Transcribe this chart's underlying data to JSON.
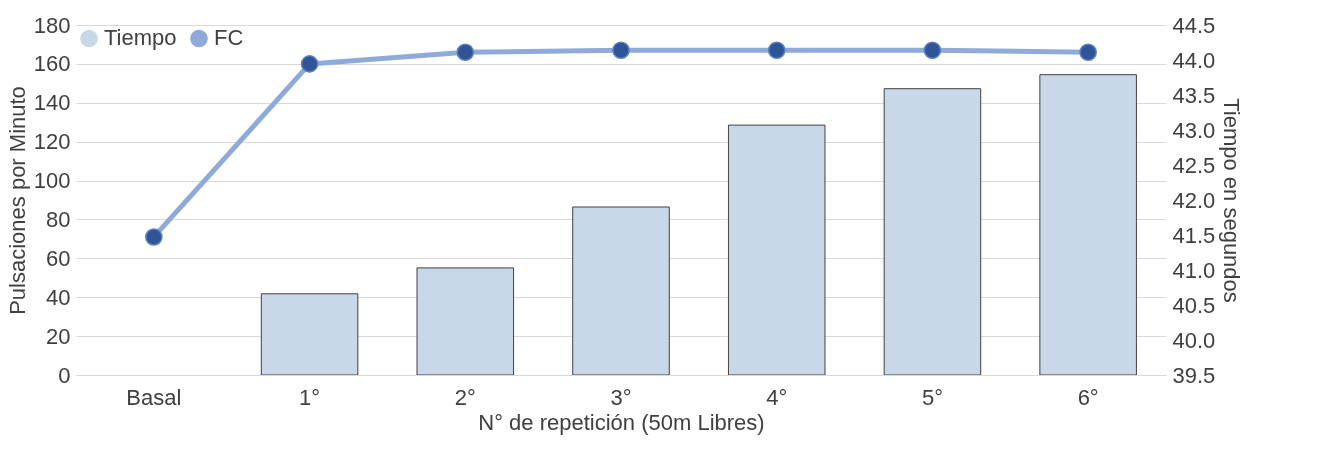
{
  "chart_data": {
    "type": "bar",
    "xlabel": "N° de repetición (50m Libres)",
    "ylabel": "Pulsaciones por Minuto",
    "y2label": "Tiempo en segundos",
    "categories": [
      "Basal",
      "1°",
      "2°",
      "3°",
      "4°",
      "5°",
      "6°"
    ],
    "series": [
      {
        "name": "Tiempo",
        "axis": "y2",
        "color": "#c9d8e8",
        "values": [
          null,
          40.66,
          41.03,
          41.9,
          43.07,
          43.59,
          43.79
        ]
      },
      {
        "name": "FC",
        "type": "line",
        "color": "#8eaadb",
        "values": [
          71,
          160,
          166,
          167,
          167,
          167,
          166
        ]
      }
    ],
    "ylim": [
      0,
      180
    ],
    "yticks": [
      0,
      20,
      40,
      60,
      80,
      100,
      120,
      140,
      160,
      180
    ],
    "y2lim": [
      39.5,
      44.5
    ],
    "y2ticks": [
      39.5,
      {
        "value": 40,
        "label": "40.0"
      },
      40.5,
      {
        "value": 41,
        "label": "41.0"
      },
      41.5,
      {
        "value": 42,
        "label": "42.0"
      },
      42.5,
      {
        "value": 43,
        "label": "43.0"
      },
      43.5,
      {
        "value": 44,
        "label": "44.0"
      },
      44.5
    ],
    "grid": "y",
    "legend": "top left",
    "marker": "circle",
    "line_style": "solid"
  }
}
